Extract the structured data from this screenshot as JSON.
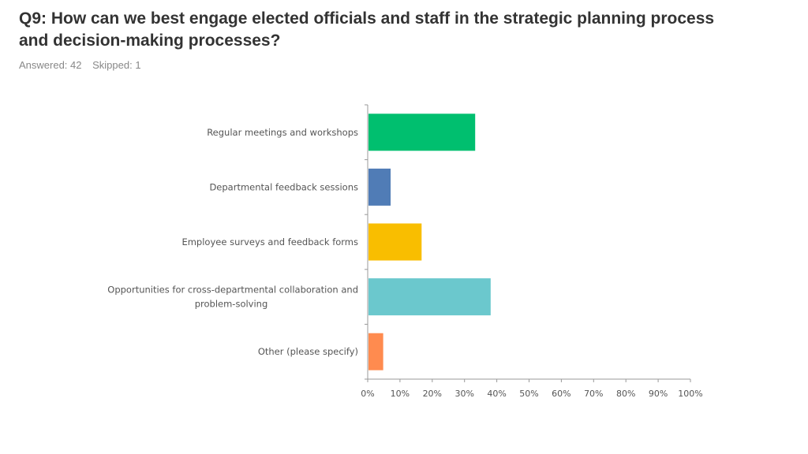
{
  "header": {
    "title": "Q9: How can we best engage elected officials and staff in the strategic planning process and decision-making processes?",
    "answered_label": "Answered: 42",
    "skipped_label": "Skipped: 1"
  },
  "chart_data": {
    "type": "bar",
    "orientation": "horizontal",
    "categories": [
      [
        "Regular meetings and workshops"
      ],
      [
        "Departmental feedback sessions"
      ],
      [
        "Employee surveys and feedback forms"
      ],
      [
        "Opportunities for cross-departmental collaboration and",
        "problem-solving"
      ],
      [
        "Other (please specify)"
      ]
    ],
    "values": [
      33.3,
      7.1,
      16.7,
      38.1,
      4.8
    ],
    "colors": [
      "#00bf6f",
      "#507cb6",
      "#f9be00",
      "#6bc8cd",
      "#ff8b4f"
    ],
    "xlim": [
      0,
      100
    ],
    "xticks": [
      "0%",
      "10%",
      "20%",
      "30%",
      "40%",
      "50%",
      "60%",
      "70%",
      "80%",
      "90%",
      "100%"
    ],
    "grid": false,
    "axis_color": "#999999"
  }
}
